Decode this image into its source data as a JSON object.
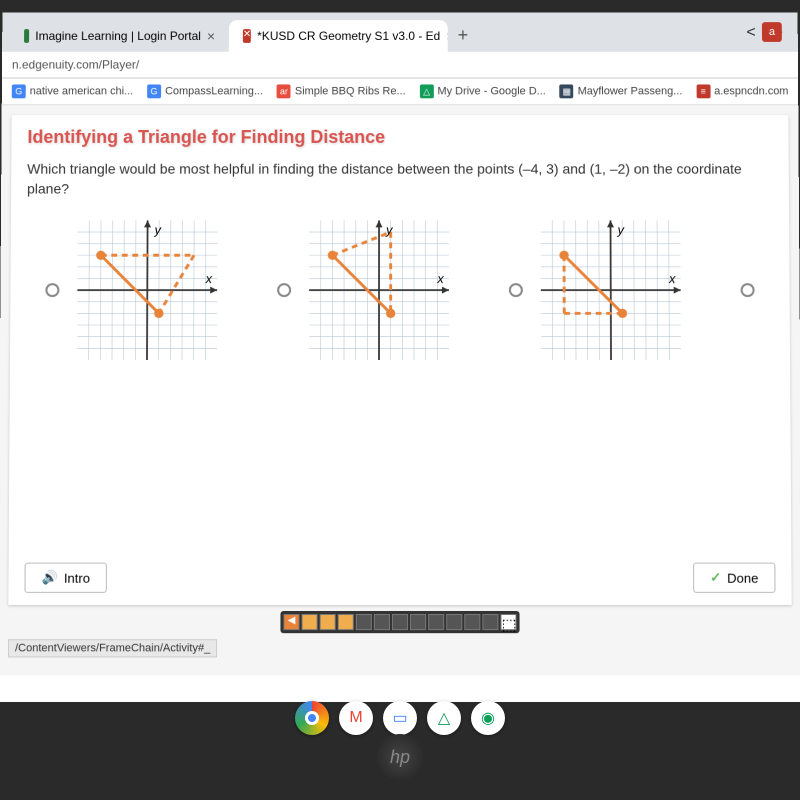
{
  "browser": {
    "tabs": [
      {
        "title": "Imagine Learning | Login Portal",
        "favicon_color": "#2b7a3b"
      },
      {
        "title": "*KUSD CR Geometry S1 v3.0 - Ed",
        "favicon_color": "#c0392b"
      }
    ],
    "url": "n.edgenuity.com/Player/",
    "toolbar_icons": {
      "share": "<",
      "star": "☆"
    },
    "extension_letter": "a"
  },
  "bookmarks": [
    {
      "label": "native american chi...",
      "icon_color": "#4285f4",
      "icon_text": "G"
    },
    {
      "label": "CompassLearning...",
      "icon_color": "#4285f4",
      "icon_text": "G"
    },
    {
      "label": "Simple BBQ Ribs Re...",
      "icon_color": "#e74c3c",
      "icon_text": "ar"
    },
    {
      "label": "My Drive - Google D...",
      "icon_color": "#0f9d58",
      "icon_text": "△"
    },
    {
      "label": "Mayflower Passeng...",
      "icon_color": "#34495e",
      "icon_text": "▦"
    },
    {
      "label": "a.espncdn.com",
      "icon_color": "#c0392b",
      "icon_text": "≡"
    }
  ],
  "lesson": {
    "title": "Identifying a Triangle for Finding Distance",
    "question": "Which triangle would be most helpful in finding the distance between the points (–4, 3) and (1, –2) on the coordinate plane?",
    "axis_label_x": "x",
    "axis_label_y": "y",
    "grid": {
      "size": 10,
      "bg": "#ffffff",
      "grid_color": "#b8c5d6",
      "axis_color": "#333333",
      "line_color": "#e8833a",
      "line_width": 2.5,
      "point_color": "#e8833a",
      "point_radius": 4
    },
    "options": [
      {
        "solid_segment": [
          [
            -4,
            3
          ],
          [
            1,
            -2
          ]
        ],
        "dashed_segments": [
          [
            [
              -4,
              3
            ],
            [
              4,
              3
            ]
          ],
          [
            [
              4,
              3
            ],
            [
              1,
              -2
            ]
          ]
        ],
        "points": [
          [
            -4,
            3
          ],
          [
            1,
            -2
          ]
        ]
      },
      {
        "solid_segment": [
          [
            -4,
            3
          ],
          [
            1,
            -2
          ]
        ],
        "dashed_segments": [
          [
            [
              -4,
              3
            ],
            [
              1,
              5
            ]
          ],
          [
            [
              1,
              5
            ],
            [
              1,
              -2
            ]
          ]
        ],
        "points": [
          [
            -4,
            3
          ],
          [
            1,
            -2
          ]
        ]
      },
      {
        "solid_segment": [
          [
            -4,
            3
          ],
          [
            1,
            -2
          ]
        ],
        "dashed_segments": [
          [
            [
              -4,
              3
            ],
            [
              -4,
              -2
            ]
          ],
          [
            [
              -4,
              -2
            ],
            [
              1,
              -2
            ]
          ]
        ],
        "points": [
          [
            -4,
            3
          ],
          [
            1,
            -2
          ]
        ]
      }
    ],
    "intro_btn": "Intro",
    "done_btn": "Done",
    "progress_total": 11,
    "progress_done": 3
  },
  "status_url": "/ContentViewers/FrameChain/Activity#_",
  "taskbar_apps": [
    {
      "name": "chrome",
      "gradient": [
        "#ea4335",
        "#fbbc05",
        "#34a853",
        "#4285f4"
      ]
    },
    {
      "name": "gmail",
      "color": "#ea4335",
      "text": "M"
    },
    {
      "name": "docs",
      "color": "#4285f4",
      "text": "▭"
    },
    {
      "name": "drive",
      "color": "#0f9d58",
      "text": "△"
    },
    {
      "name": "app",
      "color": "#0f9d58",
      "text": "◉"
    }
  ],
  "logo": "hp"
}
